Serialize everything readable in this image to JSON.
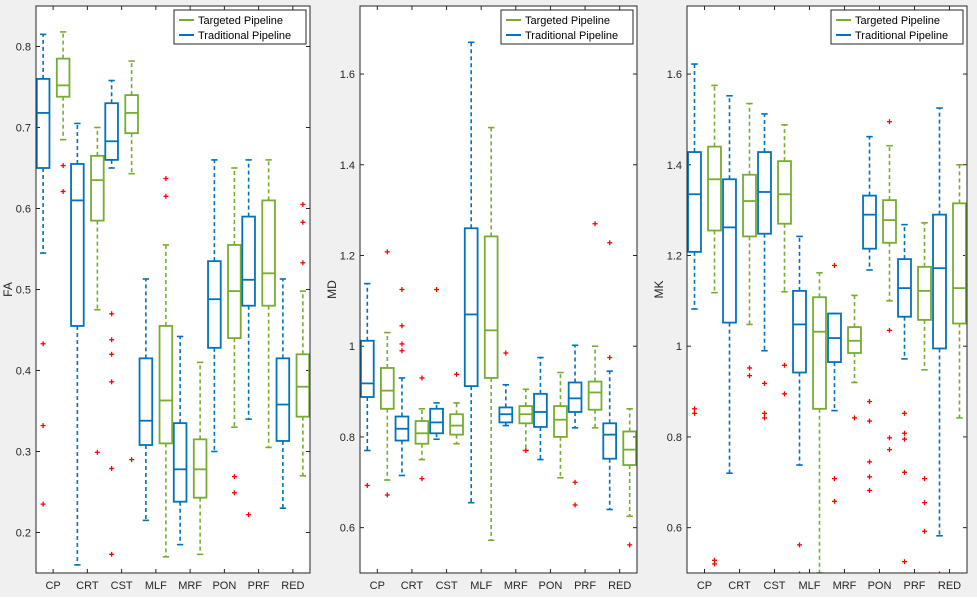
{
  "figure": {
    "colors": {
      "targeted": "#77ac30",
      "traditional": "#0072bd",
      "outlier": "#ff0000",
      "axis": "#262626"
    }
  },
  "chart_data": [
    {
      "type": "boxplot",
      "ylabel": "FA",
      "ylim": [
        0.15,
        0.85
      ],
      "yticks": [
        0.2,
        0.3,
        0.4,
        0.5,
        0.6,
        0.7,
        0.8
      ],
      "ytick_labels": [
        "0.2",
        "0.3",
        "0.4",
        "0.5",
        "0.6",
        "0.7",
        "0.8"
      ],
      "categories": [
        "CP",
        "CRT",
        "CST",
        "MLF",
        "MRF",
        "PON",
        "PRF",
        "RED"
      ],
      "legend": {
        "position": "top-right",
        "entries": [
          "Targeted Pipeline",
          "Traditional Pipeline"
        ]
      },
      "series": [
        {
          "name": "Traditional Pipeline",
          "boxes": [
            {
              "min": 0.545,
              "q1": 0.65,
              "median": 0.718,
              "q3": 0.76,
              "max": 0.815,
              "outliers": [
                0.433,
                0.332,
                0.235
              ]
            },
            {
              "min": 0.16,
              "q1": 0.455,
              "median": 0.61,
              "q3": 0.655,
              "max": 0.705,
              "outliers": []
            },
            {
              "min": 0.65,
              "q1": 0.66,
              "median": 0.683,
              "q3": 0.73,
              "max": 0.758,
              "outliers": [
                0.47,
                0.438,
                0.42,
                0.386,
                0.279,
                0.173
              ]
            },
            {
              "min": 0.215,
              "q1": 0.308,
              "median": 0.338,
              "q3": 0.415,
              "max": 0.513,
              "outliers": []
            },
            {
              "min": 0.185,
              "q1": 0.238,
              "median": 0.278,
              "q3": 0.335,
              "max": 0.442,
              "outliers": []
            },
            {
              "min": 0.3,
              "q1": 0.428,
              "median": 0.488,
              "q3": 0.535,
              "max": 0.66,
              "outliers": []
            },
            {
              "min": 0.34,
              "q1": 0.48,
              "median": 0.512,
              "q3": 0.59,
              "max": 0.66,
              "outliers": [
                0.222
              ]
            },
            {
              "min": 0.23,
              "q1": 0.313,
              "median": 0.358,
              "q3": 0.415,
              "max": 0.513,
              "outliers": []
            }
          ]
        },
        {
          "name": "Targeted Pipeline",
          "boxes": [
            {
              "min": 0.685,
              "q1": 0.738,
              "median": 0.752,
              "q3": 0.785,
              "max": 0.818,
              "outliers": [
                0.653,
                0.621
              ]
            },
            {
              "min": 0.475,
              "q1": 0.585,
              "median": 0.635,
              "q3": 0.665,
              "max": 0.7,
              "outliers": [
                0.299
              ]
            },
            {
              "min": 0.643,
              "q1": 0.693,
              "median": 0.718,
              "q3": 0.74,
              "max": 0.782,
              "outliers": [
                0.29
              ]
            },
            {
              "min": 0.17,
              "q1": 0.31,
              "median": 0.363,
              "q3": 0.455,
              "max": 0.555,
              "outliers": [
                0.637,
                0.615
              ]
            },
            {
              "min": 0.173,
              "q1": 0.243,
              "median": 0.278,
              "q3": 0.315,
              "max": 0.41,
              "outliers": []
            },
            {
              "min": 0.33,
              "q1": 0.44,
              "median": 0.498,
              "q3": 0.555,
              "max": 0.65,
              "outliers": [
                0.269,
                0.249
              ]
            },
            {
              "min": 0.305,
              "q1": 0.48,
              "median": 0.52,
              "q3": 0.61,
              "max": 0.66,
              "outliers": []
            },
            {
              "min": 0.27,
              "q1": 0.343,
              "median": 0.38,
              "q3": 0.42,
              "max": 0.498,
              "outliers": [
                0.605,
                0.583,
                0.533
              ]
            }
          ]
        }
      ]
    },
    {
      "type": "boxplot",
      "ylabel": "MD",
      "ylim": [
        0.5,
        1.75
      ],
      "yticks": [
        0.6,
        0.8,
        1.0,
        1.2,
        1.4,
        1.6
      ],
      "ytick_labels": [
        "0.6",
        "0.8",
        "1",
        "1.2",
        "1.4",
        "1.6"
      ],
      "categories": [
        "CP",
        "CRT",
        "CST",
        "MLF",
        "MRF",
        "PON",
        "PRF",
        "RED"
      ],
      "legend": {
        "position": "top-right",
        "entries": [
          "Targeted Pipeline",
          "Traditional Pipeline"
        ]
      },
      "series": [
        {
          "name": "Traditional Pipeline",
          "boxes": [
            {
              "min": 0.77,
              "q1": 0.888,
              "median": 0.918,
              "q3": 1.012,
              "max": 1.138,
              "outliers": [
                0.693
              ]
            },
            {
              "min": 0.715,
              "q1": 0.792,
              "median": 0.818,
              "q3": 0.845,
              "max": 0.93,
              "outliers": [
                1.125,
                1.045,
                1.005,
                0.99
              ]
            },
            {
              "min": 0.795,
              "q1": 0.808,
              "median": 0.832,
              "q3": 0.862,
              "max": 0.875,
              "outliers": [
                1.125
              ]
            },
            {
              "min": 0.655,
              "q1": 0.912,
              "median": 1.07,
              "q3": 1.26,
              "max": 1.67,
              "outliers": []
            },
            {
              "min": 0.825,
              "q1": 0.832,
              "median": 0.85,
              "q3": 0.865,
              "max": 0.915,
              "outliers": [
                0.985
              ]
            },
            {
              "min": 0.75,
              "q1": 0.822,
              "median": 0.855,
              "q3": 0.895,
              "max": 0.975,
              "outliers": []
            },
            {
              "min": 0.82,
              "q1": 0.855,
              "median": 0.885,
              "q3": 0.92,
              "max": 1.002,
              "outliers": [
                0.7,
                0.65
              ]
            },
            {
              "min": 0.64,
              "q1": 0.752,
              "median": 0.805,
              "q3": 0.83,
              "max": 0.945,
              "outliers": [
                1.228,
                0.975
              ]
            }
          ]
        },
        {
          "name": "Targeted Pipeline",
          "boxes": [
            {
              "min": 0.705,
              "q1": 0.862,
              "median": 0.902,
              "q3": 0.952,
              "max": 1.03,
              "outliers": [
                1.208,
                0.672
              ]
            },
            {
              "min": 0.75,
              "q1": 0.785,
              "median": 0.808,
              "q3": 0.835,
              "max": 0.862,
              "outliers": [
                0.93,
                0.708
              ]
            },
            {
              "min": 0.785,
              "q1": 0.805,
              "median": 0.825,
              "q3": 0.85,
              "max": 0.875,
              "outliers": [
                0.938
              ]
            },
            {
              "min": 0.572,
              "q1": 0.93,
              "median": 1.035,
              "q3": 1.242,
              "max": 1.482,
              "outliers": []
            },
            {
              "min": 0.77,
              "q1": 0.83,
              "median": 0.85,
              "q3": 0.868,
              "max": 0.905,
              "outliers": [
                0.77
              ]
            },
            {
              "min": 0.71,
              "q1": 0.8,
              "median": 0.838,
              "q3": 0.868,
              "max": 0.942,
              "outliers": []
            },
            {
              "min": 0.82,
              "q1": 0.86,
              "median": 0.898,
              "q3": 0.922,
              "max": 1.0,
              "outliers": [
                1.27
              ]
            },
            {
              "min": 0.625,
              "q1": 0.738,
              "median": 0.772,
              "q3": 0.812,
              "max": 0.862,
              "outliers": [
                0.562
              ]
            }
          ]
        }
      ]
    },
    {
      "type": "boxplot",
      "ylabel": "MK",
      "ylim": [
        0.5,
        1.75
      ],
      "yticks": [
        0.6,
        0.8,
        1.0,
        1.2,
        1.4,
        1.6
      ],
      "ytick_labels": [
        "0.6",
        "0.8",
        "1",
        "1.2",
        "1.4",
        "1.6"
      ],
      "categories": [
        "CP",
        "CRT",
        "CST",
        "MLF",
        "MRF",
        "PON",
        "PRF",
        "RED"
      ],
      "legend": {
        "position": "top-right",
        "entries": [
          "Targeted Pipeline",
          "Traditional Pipeline"
        ]
      },
      "series": [
        {
          "name": "Traditional Pipeline",
          "boxes": [
            {
              "min": 1.082,
              "q1": 1.208,
              "median": 1.335,
              "q3": 1.428,
              "max": 1.622,
              "outliers": [
                0.862,
                0.852
              ]
            },
            {
              "min": 0.72,
              "q1": 1.052,
              "median": 1.262,
              "q3": 1.368,
              "max": 1.552,
              "outliers": []
            },
            {
              "min": 0.99,
              "q1": 1.248,
              "median": 1.34,
              "q3": 1.428,
              "max": 1.512,
              "outliers": [
                0.918,
                0.852,
                0.842
              ]
            },
            {
              "min": 0.738,
              "q1": 0.942,
              "median": 1.048,
              "q3": 1.122,
              "max": 1.242,
              "outliers": [
                0.562,
                0.498
              ]
            },
            {
              "min": 0.858,
              "q1": 0.965,
              "median": 1.018,
              "q3": 1.072,
              "max": 1.072,
              "outliers": [
                1.178,
                0.708,
                0.658
              ]
            },
            {
              "min": 1.168,
              "q1": 1.215,
              "median": 1.29,
              "q3": 1.332,
              "max": 1.462,
              "outliers": [
                0.878,
                0.835,
                0.745,
                0.712,
                0.682
              ]
            },
            {
              "min": 0.972,
              "q1": 1.065,
              "median": 1.128,
              "q3": 1.192,
              "max": 1.268,
              "outliers": [
                0.852,
                0.808,
                0.795,
                0.722,
                0.525
              ]
            },
            {
              "min": 0.582,
              "q1": 0.995,
              "median": 1.172,
              "q3": 1.29,
              "max": 1.525,
              "outliers": [
                0.498
              ]
            }
          ]
        },
        {
          "name": "Targeted Pipeline",
          "boxes": [
            {
              "min": 1.118,
              "q1": 1.255,
              "median": 1.368,
              "q3": 1.44,
              "max": 1.575,
              "outliers": [
                0.528,
                0.52
              ]
            },
            {
              "min": 1.048,
              "q1": 1.242,
              "median": 1.32,
              "q3": 1.378,
              "max": 1.535,
              "outliers": [
                0.952,
                0.935
              ]
            },
            {
              "min": 1.12,
              "q1": 1.27,
              "median": 1.335,
              "q3": 1.408,
              "max": 1.488,
              "outliers": [
                0.958,
                0.895
              ]
            },
            {
              "min": 0.5,
              "q1": 0.862,
              "median": 1.032,
              "q3": 1.108,
              "max": 1.162,
              "outliers": []
            },
            {
              "min": 0.92,
              "q1": 0.985,
              "median": 1.012,
              "q3": 1.042,
              "max": 1.112,
              "outliers": [
                0.842
              ]
            },
            {
              "min": 1.1,
              "q1": 1.228,
              "median": 1.278,
              "q3": 1.322,
              "max": 1.442,
              "outliers": [
                1.495,
                1.035,
                0.798,
                0.772
              ]
            },
            {
              "min": 0.948,
              "q1": 1.058,
              "median": 1.122,
              "q3": 1.175,
              "max": 1.272,
              "outliers": [
                0.708,
                0.655,
                0.592
              ]
            },
            {
              "min": 0.842,
              "q1": 1.05,
              "median": 1.128,
              "q3": 1.315,
              "max": 1.4,
              "outliers": []
            }
          ]
        }
      ]
    }
  ]
}
